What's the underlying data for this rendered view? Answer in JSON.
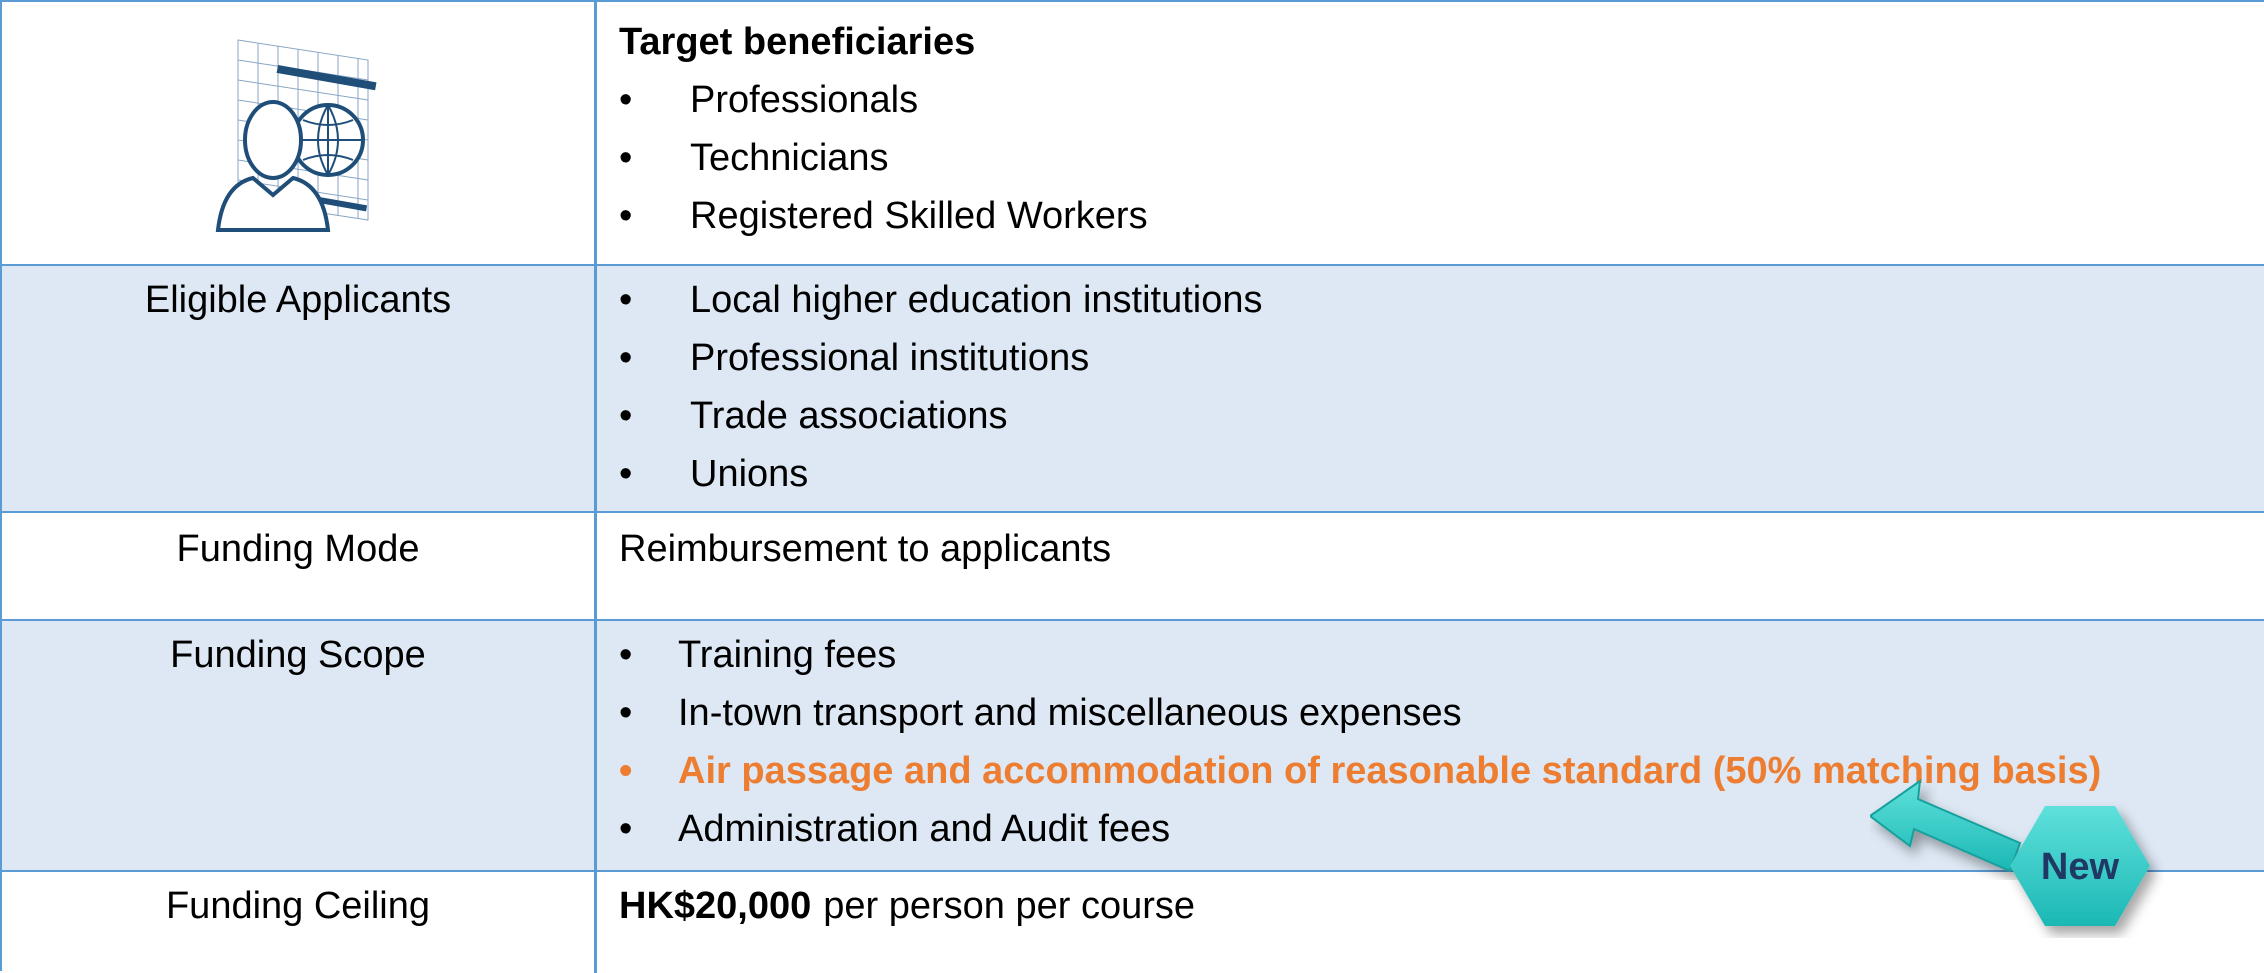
{
  "table": {
    "rows": [
      {
        "heading": "Target beneficiaries",
        "items": [
          "Professionals",
          "Technicians",
          "Registered Skilled Workers"
        ]
      },
      {
        "label": "Eligible Applicants",
        "items": [
          "Local higher education institutions",
          "Professional institutions",
          "Trade associations",
          "Unions"
        ]
      },
      {
        "label": "Funding Mode",
        "text": "Reimbursement to applicants"
      },
      {
        "label": "Funding Scope",
        "items": [
          "Training fees",
          "In-town transport and miscellaneous expenses",
          "Air passage and accommodation of reasonable standard (50% matching basis)",
          "Administration and Audit fees"
        ]
      },
      {
        "label": "Funding Ceiling",
        "text_bold": "HK$20,000",
        "text": "per person per course"
      }
    ]
  },
  "badge": "New"
}
